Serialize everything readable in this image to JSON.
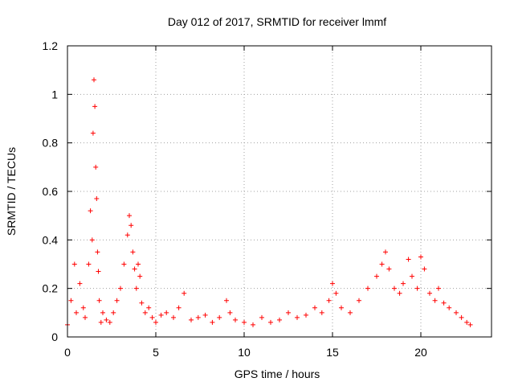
{
  "chart_data": {
    "type": "scatter",
    "title": "Day 012 of 2017, SRMTID for receiver lmmf",
    "xlabel": "GPS time / hours",
    "ylabel": "SRMTID / TECUs",
    "xlim": [
      0,
      24
    ],
    "ylim": [
      0,
      1.2
    ],
    "xticks": [
      0,
      5,
      10,
      15,
      20
    ],
    "yticks": [
      0,
      0.2,
      0.4,
      0.6,
      0.8,
      1,
      1.2
    ],
    "xtick_labels": [
      "0",
      "5",
      "10",
      "15",
      "20"
    ],
    "ytick_labels": [
      "0",
      "0.2",
      "0.4",
      "0.6",
      "0.8",
      "1",
      "1.2"
    ],
    "grid": true,
    "marker": "plus",
    "color": "#ff0000",
    "series": [
      {
        "name": "SRMTID",
        "x": [
          0.0,
          0.2,
          0.4,
          0.5,
          0.7,
          0.9,
          1.0,
          1.2,
          1.3,
          1.4,
          1.45,
          1.5,
          1.55,
          1.6,
          1.65,
          1.7,
          1.75,
          1.8,
          1.9,
          2.0,
          2.2,
          2.4,
          2.6,
          2.8,
          3.0,
          3.2,
          3.4,
          3.5,
          3.6,
          3.7,
          3.8,
          3.9,
          4.0,
          4.1,
          4.2,
          4.4,
          4.6,
          4.8,
          5.0,
          5.3,
          5.6,
          6.0,
          6.3,
          6.6,
          7.0,
          7.4,
          7.8,
          8.2,
          8.6,
          9.0,
          9.2,
          9.5,
          10.0,
          10.5,
          11.0,
          11.5,
          12.0,
          12.5,
          13.0,
          13.5,
          14.0,
          14.4,
          14.8,
          15.0,
          15.2,
          15.5,
          16.0,
          16.5,
          17.0,
          17.5,
          17.8,
          18.0,
          18.2,
          18.5,
          18.8,
          19.0,
          19.3,
          19.5,
          19.8,
          20.0,
          20.2,
          20.5,
          20.8,
          21.0,
          21.3,
          21.6,
          22.0,
          22.3,
          22.6,
          22.8
        ],
        "y": [
          0.05,
          0.15,
          0.3,
          0.1,
          0.22,
          0.12,
          0.08,
          0.3,
          0.52,
          0.4,
          0.84,
          1.06,
          0.95,
          0.7,
          0.57,
          0.35,
          0.27,
          0.15,
          0.06,
          0.1,
          0.07,
          0.06,
          0.1,
          0.15,
          0.2,
          0.3,
          0.42,
          0.5,
          0.46,
          0.35,
          0.28,
          0.2,
          0.3,
          0.25,
          0.14,
          0.1,
          0.12,
          0.08,
          0.06,
          0.09,
          0.1,
          0.08,
          0.12,
          0.18,
          0.07,
          0.08,
          0.09,
          0.06,
          0.08,
          0.15,
          0.1,
          0.07,
          0.06,
          0.05,
          0.08,
          0.06,
          0.07,
          0.1,
          0.08,
          0.09,
          0.12,
          0.1,
          0.15,
          0.22,
          0.18,
          0.12,
          0.1,
          0.15,
          0.2,
          0.25,
          0.3,
          0.35,
          0.28,
          0.2,
          0.18,
          0.22,
          0.32,
          0.25,
          0.2,
          0.33,
          0.28,
          0.18,
          0.15,
          0.2,
          0.14,
          0.12,
          0.1,
          0.08,
          0.06,
          0.05
        ]
      }
    ]
  }
}
